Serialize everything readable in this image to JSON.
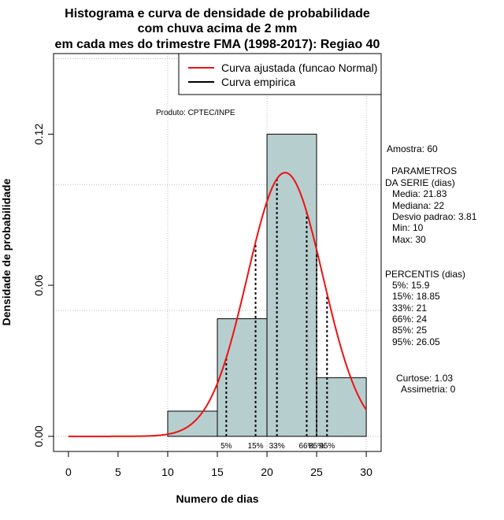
{
  "chart_data": {
    "type": "histogram",
    "title_lines": [
      "Histograma e curva de densidade de probabilidade",
      "com chuva acima de 2 mm",
      "em cada mes do trimestre FMA (1998-2017): Regiao 40"
    ],
    "xlabel": "Numero de dias",
    "ylabel": "Densidade de probabilidade",
    "xlim": [
      -1.5,
      31.5
    ],
    "ylim": [
      -0.006,
      0.152
    ],
    "x_ticks": [
      0,
      5,
      10,
      15,
      20,
      25,
      30
    ],
    "y_ticks": [
      0.0,
      0.06,
      0.12
    ],
    "y_tick_labels": [
      "0.00",
      "0.06",
      "0.12"
    ],
    "x_grid": [
      10,
      20,
      30
    ],
    "y_grid": [
      0.0,
      0.05,
      0.1,
      0.15
    ],
    "bins": [
      {
        "from": 10,
        "to": 15,
        "density": 0.01
      },
      {
        "from": 15,
        "to": 20,
        "density": 0.0467
      },
      {
        "from": 20,
        "to": 25,
        "density": 0.12
      },
      {
        "from": 25,
        "to": 30,
        "density": 0.0233
      }
    ],
    "normal_fit": {
      "mean": 21.83,
      "sd": 3.81,
      "x_from": 0,
      "x_to": 30,
      "color": "#ee1111"
    },
    "percentile_lines": [
      {
        "label": "5%",
        "x": 15.9
      },
      {
        "label": "15%",
        "x": 18.85
      },
      {
        "label": "33%",
        "x": 21
      },
      {
        "label": "66%",
        "x": 24
      },
      {
        "label": "85%",
        "x": 25
      },
      {
        "label": "95%",
        "x": 26.05
      }
    ],
    "bar_fill": "#b7cece",
    "legend": [
      {
        "label": "Curva ajustada (funcao Normal)",
        "color": "#ee1111"
      },
      {
        "label": "Curva empirica",
        "color": "#000000"
      }
    ],
    "credit": "Produto: CPTEC/INPE"
  },
  "stats_panel": {
    "sample": "Amostra: 60",
    "params_title_1": "PARAMETROS",
    "params_title_2": "DA SERIE (dias)",
    "params": [
      "Media: 21.83",
      "Mediana: 22",
      "Desvio padrao: 3.81",
      "Min: 10",
      "Max: 30"
    ],
    "percentis_title": "PERCENTIS (dias)",
    "percentis": [
      "5%: 15.9",
      "15%: 18.85",
      "33%: 21",
      "66%: 24",
      "85%: 25",
      "95%: 26.05"
    ],
    "curtose": "Curtose: 1.03",
    "assimetria": "Assimetria: 0"
  }
}
